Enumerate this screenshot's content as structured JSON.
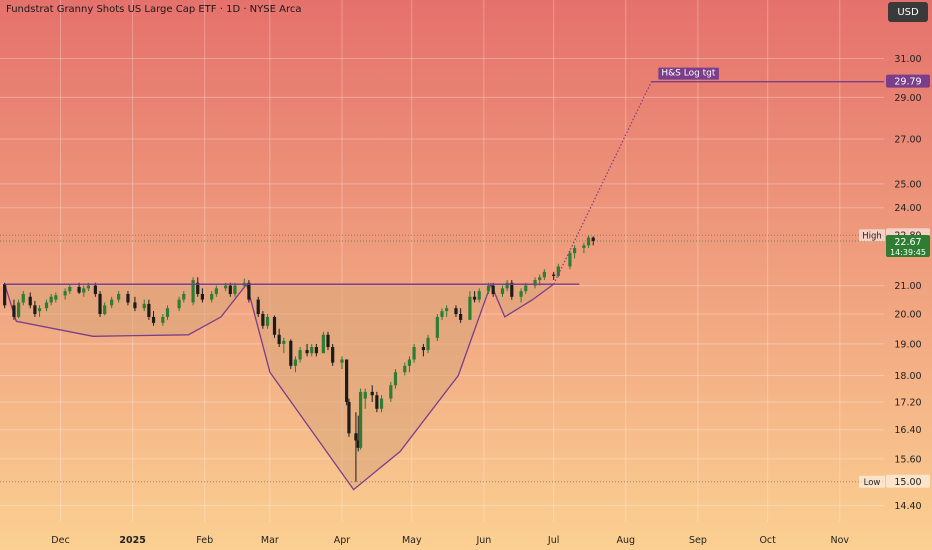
{
  "title": "Fundstrat Granny Shots US Large Cap ETF · 1D · NYSE Arca",
  "currency_button": "USD",
  "colors": {
    "bg_top": "#e5716c",
    "bg_bottom": "#fbd092",
    "up_candle": "#2e7d32",
    "down_candle": "#1c1c1c",
    "pattern_line": "#7a3e8a",
    "pattern_fill": "#d8a67a",
    "target_label_bg": "#7a3e8a",
    "last_price_bg": "#2e7d32"
  },
  "chart_data": {
    "type": "candlestick",
    "y_scale": "log",
    "ylim": [
      14.0,
      33.0
    ],
    "y_ticks": [
      "31.00",
      "29.00",
      "27.00",
      "25.00",
      "24.00",
      "21.00",
      "20.00",
      "19.00",
      "18.00",
      "17.20",
      "16.40",
      "15.60",
      "14.40"
    ],
    "x_ticks": [
      "Dec",
      "2025",
      "Feb",
      "Mar",
      "Apr",
      "May",
      "Jun",
      "Jul",
      "Aug",
      "Sep",
      "Oct",
      "Nov"
    ],
    "x_tick_dates": [
      "2024-12-01",
      "2025-01-01",
      "2025-02-01",
      "2025-03-01",
      "2025-04-01",
      "2025-05-01",
      "2025-06-01",
      "2025-07-01",
      "2025-08-01",
      "2025-09-01",
      "2025-10-01",
      "2025-11-01"
    ],
    "xlim": [
      "2024-11-05",
      "2025-11-20"
    ],
    "target": {
      "label": "H&S Log tgt",
      "value": "29.79"
    },
    "high_marker": {
      "label": "High",
      "value": "22.89"
    },
    "low_marker": {
      "label": "Low",
      "value": "15.00"
    },
    "last_price": {
      "value": "22.67",
      "sub": "14:39:45"
    },
    "neckline": {
      "value": 21.05,
      "start": "2024-11-07",
      "end": "2025-07-12"
    },
    "pattern_polygon": [
      [
        "2024-11-07",
        21.05
      ],
      [
        "2024-11-12",
        19.75
      ],
      [
        "2024-12-15",
        19.25
      ],
      [
        "2025-01-25",
        19.3
      ],
      [
        "2025-02-08",
        19.9
      ],
      [
        "2025-02-19",
        21.05
      ],
      [
        "2025-03-01",
        18.1
      ],
      [
        "2025-04-06",
        14.8
      ],
      [
        "2025-04-26",
        15.8
      ],
      [
        "2025-05-21",
        18.0
      ],
      [
        "2025-06-04",
        21.05
      ],
      [
        "2025-06-10",
        19.9
      ],
      [
        "2025-06-22",
        20.5
      ],
      [
        "2025-07-01",
        21.05
      ]
    ],
    "projection": [
      [
        "2025-07-01",
        21.05
      ],
      [
        "2025-08-12",
        29.79
      ]
    ],
    "candles": [
      [
        "2024-11-07",
        21.05,
        21.1,
        20.2,
        20.3
      ],
      [
        "2024-11-11",
        20.3,
        20.5,
        19.8,
        19.9
      ],
      [
        "2024-11-13",
        19.9,
        20.5,
        19.85,
        20.4
      ],
      [
        "2024-11-15",
        20.4,
        20.8,
        20.3,
        20.7
      ],
      [
        "2024-11-18",
        20.6,
        20.75,
        20.2,
        20.3
      ],
      [
        "2024-11-20",
        20.3,
        20.45,
        19.9,
        20.0
      ],
      [
        "2024-11-22",
        20.1,
        20.3,
        19.9,
        20.2
      ],
      [
        "2024-11-25",
        20.2,
        20.5,
        20.1,
        20.4
      ],
      [
        "2024-11-27",
        20.4,
        20.7,
        20.3,
        20.6
      ],
      [
        "2024-11-29",
        20.5,
        20.75,
        20.4,
        20.65
      ],
      [
        "2024-12-03",
        20.65,
        20.9,
        20.5,
        20.8
      ],
      [
        "2024-12-05",
        20.8,
        21.05,
        20.7,
        20.95
      ],
      [
        "2024-12-09",
        20.95,
        21.1,
        20.7,
        20.75
      ],
      [
        "2024-12-11",
        20.75,
        21.0,
        20.6,
        20.9
      ],
      [
        "2024-12-13",
        20.9,
        21.1,
        20.8,
        21.0
      ],
      [
        "2024-12-16",
        21.0,
        21.1,
        20.6,
        20.7
      ],
      [
        "2024-12-18",
        20.7,
        20.8,
        19.9,
        20.0
      ],
      [
        "2024-12-20",
        20.0,
        20.4,
        19.95,
        20.3
      ],
      [
        "2024-12-23",
        20.3,
        20.6,
        20.2,
        20.5
      ],
      [
        "2024-12-26",
        20.5,
        20.8,
        20.4,
        20.7
      ],
      [
        "2024-12-30",
        20.7,
        20.8,
        20.3,
        20.4
      ],
      [
        "2025-01-02",
        20.4,
        20.6,
        20.1,
        20.2
      ],
      [
        "2025-01-06",
        20.2,
        20.5,
        20.1,
        20.35
      ],
      [
        "2025-01-08",
        20.35,
        20.5,
        19.8,
        19.9
      ],
      [
        "2025-01-10",
        19.9,
        20.1,
        19.6,
        19.7
      ],
      [
        "2025-01-14",
        19.7,
        20.0,
        19.6,
        19.9
      ],
      [
        "2025-01-16",
        19.9,
        20.3,
        19.8,
        20.2
      ],
      [
        "2025-01-21",
        20.2,
        20.6,
        20.1,
        20.5
      ],
      [
        "2025-01-23",
        20.5,
        20.8,
        20.4,
        20.7
      ],
      [
        "2025-01-27",
        20.4,
        21.3,
        20.3,
        21.2
      ],
      [
        "2025-01-29",
        21.1,
        21.3,
        20.6,
        20.7
      ],
      [
        "2025-01-31",
        20.7,
        20.9,
        20.4,
        20.5
      ],
      [
        "2025-02-04",
        20.5,
        20.8,
        20.4,
        20.7
      ],
      [
        "2025-02-06",
        20.7,
        21.0,
        20.6,
        20.9
      ],
      [
        "2025-02-10",
        20.9,
        21.1,
        20.8,
        21.0
      ],
      [
        "2025-02-12",
        21.0,
        21.1,
        20.6,
        20.7
      ],
      [
        "2025-02-14",
        20.7,
        21.1,
        20.6,
        21.0
      ],
      [
        "2025-02-18",
        21.0,
        21.25,
        20.9,
        21.1
      ],
      [
        "2025-02-20",
        21.1,
        21.2,
        20.4,
        20.5
      ],
      [
        "2025-02-24",
        20.5,
        20.6,
        19.9,
        20.0
      ],
      [
        "2025-02-26",
        20.0,
        20.1,
        19.5,
        19.6
      ],
      [
        "2025-02-28",
        19.6,
        20.0,
        19.5,
        19.9
      ],
      [
        "2025-03-03",
        19.9,
        19.95,
        19.2,
        19.3
      ],
      [
        "2025-03-05",
        19.3,
        19.5,
        18.9,
        19.0
      ],
      [
        "2025-03-07",
        19.0,
        19.2,
        18.7,
        19.1
      ],
      [
        "2025-03-10",
        19.1,
        19.15,
        18.2,
        18.3
      ],
      [
        "2025-03-12",
        18.3,
        18.6,
        18.1,
        18.5
      ],
      [
        "2025-03-14",
        18.5,
        18.9,
        18.4,
        18.8
      ],
      [
        "2025-03-17",
        18.8,
        19.0,
        18.6,
        18.7
      ],
      [
        "2025-03-19",
        18.7,
        19.0,
        18.6,
        18.9
      ],
      [
        "2025-03-21",
        18.9,
        19.0,
        18.6,
        18.7
      ],
      [
        "2025-03-24",
        18.7,
        19.4,
        18.7,
        19.3
      ],
      [
        "2025-03-26",
        19.3,
        19.4,
        18.8,
        18.9
      ],
      [
        "2025-03-28",
        18.9,
        19.0,
        18.3,
        18.4
      ],
      [
        "2025-04-01",
        18.4,
        18.6,
        18.2,
        18.5
      ],
      [
        "2025-04-03",
        18.5,
        18.5,
        17.1,
        17.2
      ],
      [
        "2025-04-04",
        17.2,
        17.3,
        16.2,
        16.3
      ],
      [
        "2025-04-07",
        16.3,
        16.9,
        15.0,
        16.1
      ],
      [
        "2025-04-08",
        16.1,
        16.8,
        15.8,
        15.9
      ],
      [
        "2025-04-09",
        15.9,
        17.6,
        15.85,
        17.5
      ],
      [
        "2025-04-11",
        17.3,
        17.6,
        17.0,
        17.5
      ],
      [
        "2025-04-14",
        17.5,
        17.7,
        17.2,
        17.4
      ],
      [
        "2025-04-16",
        17.4,
        17.5,
        16.9,
        17.0
      ],
      [
        "2025-04-18",
        17.0,
        17.4,
        16.9,
        17.3
      ],
      [
        "2025-04-22",
        17.3,
        17.8,
        17.2,
        17.7
      ],
      [
        "2025-04-24",
        17.7,
        18.2,
        17.6,
        18.1
      ],
      [
        "2025-04-28",
        18.1,
        18.4,
        18.0,
        18.3
      ],
      [
        "2025-04-30",
        18.3,
        18.6,
        18.1,
        18.5
      ],
      [
        "2025-05-02",
        18.5,
        19.0,
        18.4,
        18.9
      ],
      [
        "2025-05-06",
        18.9,
        19.0,
        18.6,
        18.8
      ],
      [
        "2025-05-08",
        18.8,
        19.3,
        18.7,
        19.2
      ],
      [
        "2025-05-12",
        19.2,
        20.0,
        19.1,
        19.9
      ],
      [
        "2025-05-14",
        19.9,
        20.2,
        19.8,
        20.1
      ],
      [
        "2025-05-16",
        20.1,
        20.3,
        19.9,
        20.2
      ],
      [
        "2025-05-20",
        20.2,
        20.3,
        19.9,
        20.0
      ],
      [
        "2025-05-22",
        20.0,
        20.2,
        19.7,
        19.8
      ],
      [
        "2025-05-26",
        19.8,
        20.8,
        19.8,
        20.6
      ],
      [
        "2025-05-28",
        20.6,
        20.8,
        20.4,
        20.5
      ],
      [
        "2025-05-30",
        20.5,
        20.9,
        20.4,
        20.8
      ],
      [
        "2025-06-03",
        20.8,
        21.1,
        20.7,
        21.0
      ],
      [
        "2025-06-05",
        21.0,
        21.1,
        20.6,
        20.7
      ],
      [
        "2025-06-09",
        20.7,
        21.0,
        20.6,
        20.9
      ],
      [
        "2025-06-11",
        20.9,
        21.2,
        20.8,
        21.1
      ],
      [
        "2025-06-13",
        21.1,
        21.2,
        20.5,
        20.6
      ],
      [
        "2025-06-17",
        20.6,
        20.9,
        20.4,
        20.8
      ],
      [
        "2025-06-19",
        20.8,
        21.1,
        20.7,
        21.0
      ],
      [
        "2025-06-23",
        21.0,
        21.3,
        20.9,
        21.2
      ],
      [
        "2025-06-25",
        21.2,
        21.4,
        21.0,
        21.3
      ],
      [
        "2025-06-27",
        21.3,
        21.6,
        21.2,
        21.5
      ],
      [
        "2025-07-01",
        21.4,
        21.5,
        21.2,
        21.35
      ],
      [
        "2025-07-03",
        21.35,
        21.8,
        21.3,
        21.7
      ],
      [
        "2025-07-08",
        21.7,
        22.3,
        21.6,
        22.2
      ],
      [
        "2025-07-10",
        22.2,
        22.5,
        22.0,
        22.4
      ],
      [
        "2025-07-14",
        22.4,
        22.6,
        22.2,
        22.5
      ],
      [
        "2025-07-16",
        22.5,
        22.89,
        22.4,
        22.8
      ],
      [
        "2025-07-18",
        22.8,
        22.85,
        22.5,
        22.67
      ]
    ]
  }
}
